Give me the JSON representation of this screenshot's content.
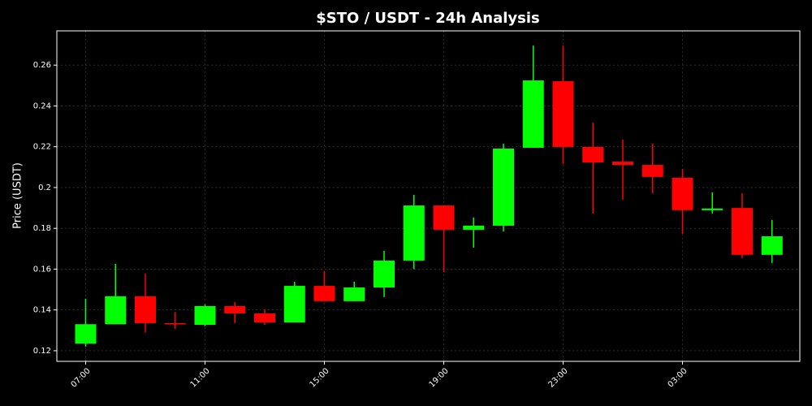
{
  "chart_data": {
    "type": "candlestick",
    "title": "$STO / USDT - 24h Analysis",
    "y_label": "Price (USDT)",
    "categories": [
      "07:00",
      null,
      null,
      null,
      "11:00",
      null,
      null,
      null,
      "15:00",
      null,
      null,
      null,
      "19:00",
      null,
      null,
      null,
      "23:00",
      null,
      null,
      null,
      "03:00",
      null,
      null,
      null
    ],
    "open": [
      0.1235,
      0.133,
      0.1467,
      0.1335,
      0.1327,
      0.1419,
      0.1383,
      0.1339,
      0.1518,
      0.1443,
      0.151,
      0.1642,
      0.1912,
      0.1793,
      0.1813,
      0.2195,
      0.2521,
      0.2199,
      0.2127,
      0.2111,
      0.2048,
      0.1889,
      0.19,
      0.167
    ],
    "high": [
      0.1455,
      0.1626,
      0.1578,
      0.139,
      0.1427,
      0.1439,
      0.1403,
      0.1538,
      0.159,
      0.1538,
      0.169,
      0.1964,
      0.1912,
      0.1853,
      0.2215,
      0.2696,
      0.2696,
      0.2318,
      0.2235,
      0.2215,
      0.2092,
      0.1976,
      0.1972,
      0.1841
    ],
    "low": [
      0.122,
      0.133,
      0.129,
      0.1307,
      0.132,
      0.1335,
      0.1327,
      0.1339,
      0.1443,
      0.1443,
      0.1463,
      0.16,
      0.1586,
      0.1705,
      0.1785,
      0.2195,
      0.2115,
      0.1873,
      0.194,
      0.1972,
      0.1773,
      0.1873,
      0.1654,
      0.163
    ],
    "close": [
      0.133,
      0.1467,
      0.1335,
      0.133,
      0.1419,
      0.1383,
      0.1339,
      0.1518,
      0.1443,
      0.151,
      0.1642,
      0.1912,
      0.1793,
      0.1813,
      0.2191,
      0.2525,
      0.2199,
      0.2123,
      0.2111,
      0.2052,
      0.1889,
      0.1897,
      0.167,
      0.1761
    ],
    "up_color": "#00ff00",
    "down_color": "#ff0000",
    "ylim": [
      0.1148,
      0.2768
    ],
    "yticks": [
      0.12,
      0.14,
      0.16,
      0.18,
      0.2,
      0.22,
      0.24,
      0.26
    ],
    "grid": true
  }
}
